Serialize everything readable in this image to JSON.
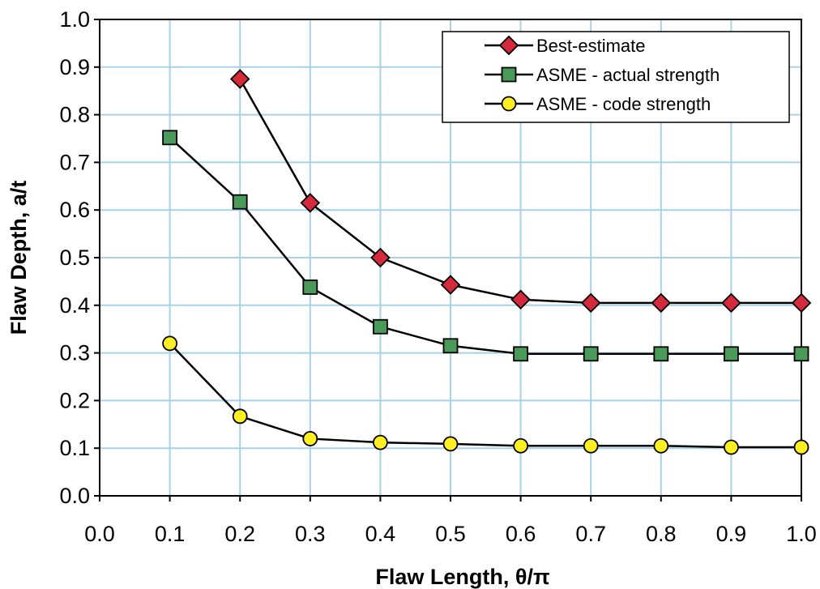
{
  "chart_data": {
    "type": "line",
    "xlabel": "Flaw Length, θ/π",
    "ylabel": "Flaw Depth, a/t",
    "xlim": [
      0.0,
      1.0
    ],
    "ylim": [
      0.0,
      1.0
    ],
    "x_ticks": [
      "0.0",
      "0.1",
      "0.2",
      "0.3",
      "0.4",
      "0.5",
      "0.6",
      "0.7",
      "0.8",
      "0.9",
      "1.0"
    ],
    "y_ticks": [
      "0.0",
      "0.1",
      "0.2",
      "0.3",
      "0.4",
      "0.5",
      "0.6",
      "0.7",
      "0.8",
      "0.9",
      "1.0"
    ],
    "grid": true,
    "grid_color": "#a8d0e8",
    "legend_position": "top-right",
    "series": [
      {
        "name": "Best-estimate",
        "marker": "diamond",
        "color": "#d42a3c",
        "points": [
          [
            0.2,
            0.875
          ],
          [
            0.3,
            0.615
          ],
          [
            0.4,
            0.5
          ],
          [
            0.5,
            0.443
          ],
          [
            0.6,
            0.412
          ],
          [
            0.7,
            0.405
          ],
          [
            0.8,
            0.405
          ],
          [
            0.9,
            0.405
          ],
          [
            1.0,
            0.405
          ]
        ]
      },
      {
        "name": "ASME - actual strength",
        "marker": "square",
        "color": "#4a9a5a",
        "points": [
          [
            0.1,
            0.752
          ],
          [
            0.2,
            0.617
          ],
          [
            0.3,
            0.438
          ],
          [
            0.4,
            0.355
          ],
          [
            0.5,
            0.315
          ],
          [
            0.6,
            0.298
          ],
          [
            0.7,
            0.298
          ],
          [
            0.8,
            0.298
          ],
          [
            0.9,
            0.298
          ],
          [
            1.0,
            0.298
          ]
        ]
      },
      {
        "name": "ASME - code strength",
        "marker": "circle",
        "color": "#ffee22",
        "points": [
          [
            0.1,
            0.32
          ],
          [
            0.2,
            0.167
          ],
          [
            0.3,
            0.12
          ],
          [
            0.4,
            0.112
          ],
          [
            0.5,
            0.109
          ],
          [
            0.6,
            0.105
          ],
          [
            0.7,
            0.105
          ],
          [
            0.8,
            0.105
          ],
          [
            0.9,
            0.102
          ],
          [
            1.0,
            0.102
          ]
        ]
      }
    ]
  }
}
